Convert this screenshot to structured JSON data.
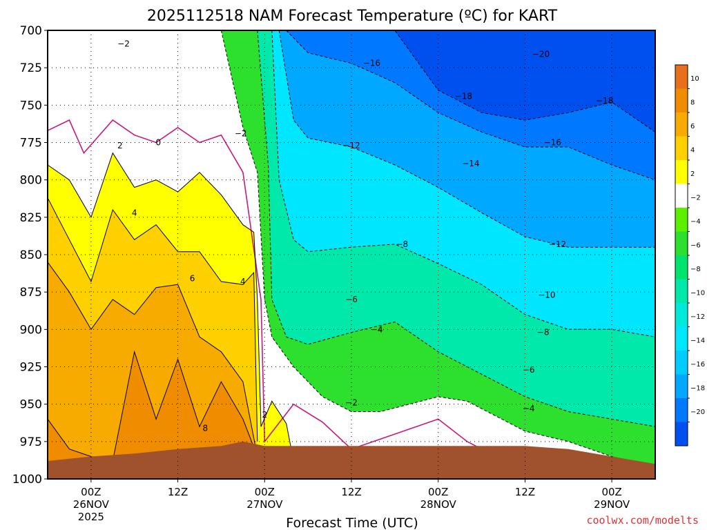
{
  "chart_data": {
    "type": "heatmap",
    "title": "2025112518 NAM Forecast Temperature (ºC) for KART",
    "xlabel": "Forecast Time (UTC)",
    "ylabel": "",
    "credit": "coolwx.com/modelts",
    "y_axis": {
      "unit": "hPa",
      "range": [
        1000,
        700
      ],
      "ticks": [
        700,
        725,
        750,
        775,
        800,
        825,
        850,
        875,
        900,
        925,
        950,
        975,
        1000
      ]
    },
    "x_axis": {
      "unit": "hours from 2025-11-25 18Z",
      "range": [
        0,
        84
      ],
      "ticks": [
        {
          "x": 6,
          "label": "00Z",
          "date": "26NOV",
          "year": "2025"
        },
        {
          "x": 18,
          "label": "12Z",
          "date": "",
          "year": ""
        },
        {
          "x": 30,
          "label": "00Z",
          "date": "27NOV",
          "year": ""
        },
        {
          "x": 42,
          "label": "12Z",
          "date": "",
          "year": ""
        },
        {
          "x": 54,
          "label": "00Z",
          "date": "28NOV",
          "year": ""
        },
        {
          "x": 66,
          "label": "12Z",
          "date": "",
          "year": ""
        },
        {
          "x": 78,
          "label": "00Z",
          "date": "29NOV",
          "year": ""
        }
      ]
    },
    "colorbar": {
      "labels": [
        "10",
        "8",
        "6",
        "4",
        "2",
        "−2",
        "−4",
        "−6",
        "−8",
        "−10",
        "−12",
        "−14",
        "−16",
        "−18",
        "−20"
      ],
      "colors": [
        "#e8701c",
        "#f08c00",
        "#f7ab00",
        "#ffd000",
        "#ffff00",
        "#ffffff",
        "#5cf000",
        "#2ee02e",
        "#00e36c",
        "#00e9aa",
        "#00eadc",
        "#00e6ff",
        "#00ccff",
        "#00a8ff",
        "#0078ff",
        "#0050f0"
      ]
    },
    "contour_labels": [
      {
        "text": "−2",
        "x": 10.5,
        "p": 709
      },
      {
        "text": "2",
        "x": 10.0,
        "p": 777
      },
      {
        "text": "0",
        "x": 15.3,
        "p": 775
      },
      {
        "text": "4",
        "x": 12.0,
        "p": 822
      },
      {
        "text": "6",
        "x": 20.0,
        "p": 866
      },
      {
        "text": "8",
        "x": 21.8,
        "p": 966
      },
      {
        "text": "4",
        "x": 27.0,
        "p": 868
      },
      {
        "text": "−2",
        "x": 26.7,
        "p": 769
      },
      {
        "text": "2",
        "x": 30.0,
        "p": 957
      },
      {
        "text": "−16",
        "x": 44.8,
        "p": 722
      },
      {
        "text": "−12",
        "x": 42.0,
        "p": 777
      },
      {
        "text": "−18",
        "x": 57.5,
        "p": 744
      },
      {
        "text": "−14",
        "x": 58.5,
        "p": 789
      },
      {
        "text": "−20",
        "x": 68.2,
        "p": 716
      },
      {
        "text": "−18",
        "x": 77.0,
        "p": 747
      },
      {
        "text": "−16",
        "x": 69.8,
        "p": 775
      },
      {
        "text": "−8",
        "x": 49.0,
        "p": 843
      },
      {
        "text": "−12",
        "x": 70.5,
        "p": 843
      },
      {
        "text": "−6",
        "x": 42.0,
        "p": 880
      },
      {
        "text": "−10",
        "x": 69.0,
        "p": 877
      },
      {
        "text": "−4",
        "x": 45.5,
        "p": 900
      },
      {
        "text": "−8",
        "x": 68.5,
        "p": 902
      },
      {
        "text": "−6",
        "x": 66.5,
        "p": 927
      },
      {
        "text": "−2",
        "x": 42.0,
        "p": 949
      },
      {
        "text": "−4",
        "x": 66.5,
        "p": 953
      }
    ],
    "series": [
      {
        "value": -18,
        "x": [
          0,
          6,
          12,
          18,
          24,
          30,
          36,
          42,
          48,
          54,
          60,
          66,
          72,
          78,
          84
        ],
        "p": [
          700,
          700,
          700,
          700,
          700,
          700,
          700,
          700,
          700,
          740,
          755,
          760,
          755,
          748,
          768
        ]
      },
      {
        "value": -16,
        "x": [
          33,
          36,
          42,
          48,
          54,
          60,
          66,
          72,
          78,
          84
        ],
        "p": [
          700,
          715,
          722,
          735,
          755,
          768,
          778,
          778,
          790,
          800
        ]
      },
      {
        "value": -12,
        "x": [
          32,
          34,
          36,
          42,
          48,
          54,
          60,
          66,
          72,
          78,
          84
        ],
        "p": [
          700,
          760,
          772,
          778,
          790,
          805,
          822,
          838,
          845,
          845,
          845
        ]
      },
      {
        "value": -8,
        "x": [
          31,
          32,
          34,
          36,
          42,
          48,
          54,
          60,
          66,
          72,
          78,
          84
        ],
        "p": [
          700,
          800,
          840,
          848,
          845,
          843,
          856,
          870,
          890,
          900,
          900,
          905
        ]
      },
      {
        "value": -4,
        "x": [
          29,
          30.5,
          31,
          33,
          36,
          42,
          48,
          54,
          60,
          66,
          72,
          78,
          84
        ],
        "p": [
          700,
          790,
          880,
          905,
          910,
          902,
          895,
          915,
          930,
          945,
          955,
          960,
          965
        ]
      },
      {
        "value": -2,
        "x": [
          24,
          27,
          29,
          30,
          31,
          34,
          38,
          42,
          46,
          50,
          54,
          58,
          62,
          66,
          72,
          78,
          84
        ],
        "p": [
          700,
          765,
          795,
          880,
          905,
          925,
          945,
          955,
          955,
          950,
          945,
          948,
          958,
          968,
          975,
          985,
          992
        ]
      },
      {
        "value": 0,
        "x": [
          0,
          3,
          5,
          9,
          12,
          15,
          18,
          21,
          24,
          27,
          29.5,
          30,
          34,
          38,
          42,
          48,
          54,
          58,
          62,
          66
        ],
        "p": [
          767,
          760,
          782,
          760,
          770,
          775,
          765,
          775,
          770,
          795,
          880,
          975,
          950,
          962,
          980,
          970,
          960,
          975,
          985,
          990
        ]
      },
      {
        "value": 2,
        "x": [
          0,
          3,
          6,
          9,
          12,
          15,
          18,
          21,
          24,
          27,
          28.5,
          29,
          29.5,
          31,
          33,
          34
        ],
        "p": [
          790,
          800,
          825,
          782,
          805,
          800,
          808,
          795,
          810,
          830,
          835,
          880,
          965,
          948,
          963,
          988
        ]
      },
      {
        "value": 4,
        "x": [
          0,
          3,
          6,
          9,
          12,
          15,
          18,
          21,
          24,
          27,
          28.5,
          29
        ],
        "p": [
          812,
          840,
          868,
          820,
          840,
          830,
          848,
          848,
          868,
          870,
          862,
          975
        ]
      },
      {
        "value": 6,
        "x": [
          0,
          3,
          6,
          9,
          12,
          15,
          18,
          21,
          24,
          27,
          29
        ],
        "p": [
          855,
          875,
          900,
          880,
          890,
          872,
          870,
          905,
          915,
          935,
          985
        ]
      },
      {
        "value": 8,
        "x": [
          0,
          3,
          6,
          9,
          12,
          15,
          18,
          21,
          24,
          27,
          29
        ],
        "p": [
          960,
          980,
          985,
          988,
          915,
          960,
          920,
          965,
          935,
          960,
          985
        ]
      }
    ],
    "terrain": {
      "x": [
        0,
        6,
        12,
        18,
        24,
        27,
        30,
        36,
        42,
        48,
        54,
        60,
        66,
        72,
        78,
        84
      ],
      "p": [
        988,
        985,
        983,
        980,
        978,
        975,
        978,
        978,
        978,
        978,
        978,
        978,
        978,
        980,
        985,
        990
      ]
    }
  }
}
